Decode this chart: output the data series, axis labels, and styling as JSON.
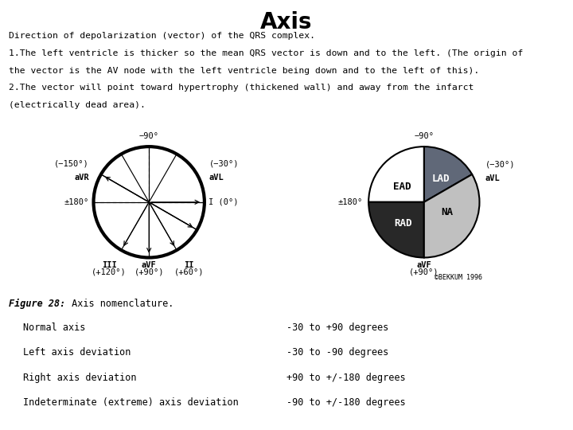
{
  "title": "Axis",
  "description_lines": [
    "Direction of depolarization (vector) of the QRS complex.",
    "1.The left ventricle is thicker so the mean QRS vector is down and to the left. (The origin of",
    "the vector is the AV node with the left ventricle being down and to the left of this).",
    "2.The vector will point toward hypertrophy (thickened wall) and away from the infarct",
    "(electrically dead area)."
  ],
  "figure_caption_italic": "Figure 28:",
  "figure_caption_normal": " Axis nomenclature.",
  "table_rows": [
    [
      "Normal axis",
      "-30 to +90 degrees"
    ],
    [
      "Left axis deviation",
      "-30 to -90 degrees"
    ],
    [
      "Right axis deviation",
      "+90 to +/-180 degrees"
    ],
    [
      "Indeterminate (extreme) axis deviation",
      "-90 to +/-180 degrees"
    ]
  ],
  "wedge_colors": {
    "LAD": "#606878",
    "NA": "#c0c0c0",
    "RAD": "#282828",
    "EAD": "#ffffff"
  },
  "copyright": "©BEKKUM 1996",
  "bg_color": "#ffffff"
}
